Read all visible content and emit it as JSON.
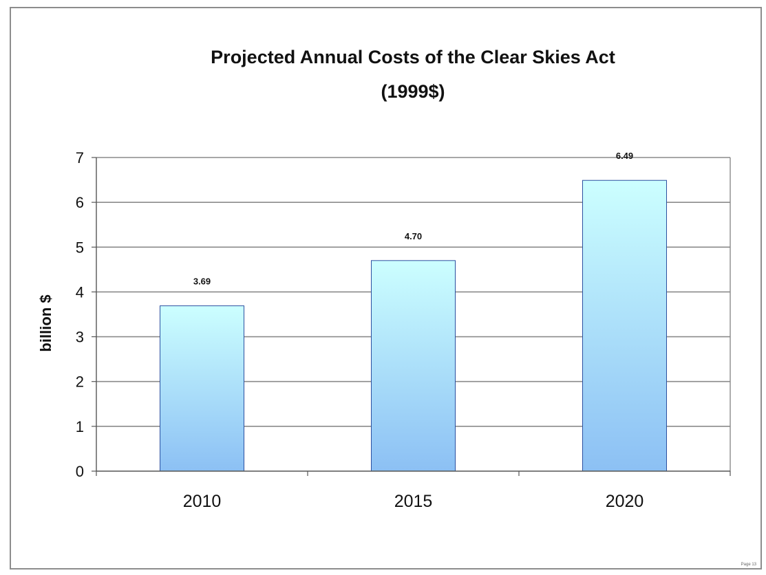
{
  "chart_data": {
    "type": "bar",
    "title": "Projected Annual Costs of the Clear Skies Act",
    "subtitle": "(1999$)",
    "xlabel": "",
    "ylabel": "billion $",
    "categories": [
      "2010",
      "2015",
      "2020"
    ],
    "values": [
      3.69,
      4.7,
      6.49
    ],
    "data_labels": [
      "3.69",
      "4.70",
      "6.49"
    ],
    "ylim": [
      0,
      7
    ],
    "yticks": [
      0,
      1,
      2,
      3,
      4,
      5,
      6,
      7
    ],
    "grid": true,
    "legend": "none",
    "colors": {
      "bar_top": "#ccffff",
      "bar_bottom": "#8cc0f4",
      "bar_stroke": "#2a4fa0",
      "grid": "#8a8a8a",
      "axis": "#555555"
    }
  },
  "credit": "Page 13"
}
